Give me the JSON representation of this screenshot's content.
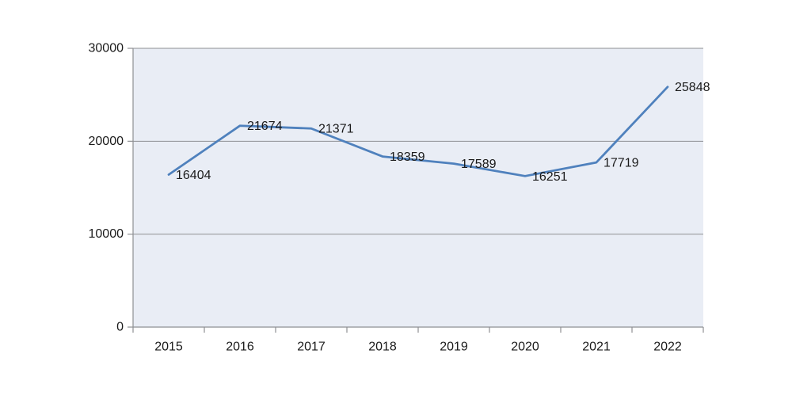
{
  "colors": {
    "line": "#4f81bd",
    "plot_background": "#e9edf5",
    "gridline": "#8e9093",
    "axis": "#8e9093",
    "label_text": "#1a1a1a",
    "page_background": "#ffffff"
  },
  "chart_data": {
    "type": "line",
    "title": "",
    "xlabel": "",
    "ylabel": "",
    "categories": [
      "2015",
      "2016",
      "2017",
      "2018",
      "2019",
      "2020",
      "2021",
      "2022"
    ],
    "series": [
      {
        "name": "",
        "values": [
          16404,
          21674,
          21371,
          18359,
          17589,
          16251,
          17719,
          25848
        ]
      }
    ],
    "data_labels": [
      "16404",
      "21674",
      "21371",
      "18359",
      "17589",
      "16251",
      "17719",
      "25848"
    ],
    "ylim": [
      0,
      30000
    ],
    "yticks": [
      0,
      10000,
      20000,
      30000
    ],
    "ytick_labels": [
      "0",
      "10000",
      "20000",
      "30000"
    ],
    "grid": "horizontal",
    "legend": "none",
    "markers": "none"
  }
}
